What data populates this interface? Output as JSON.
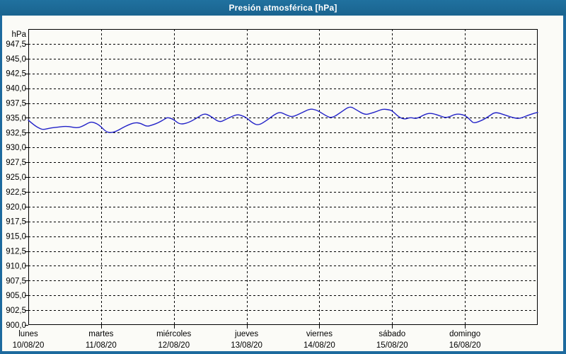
{
  "window": {
    "title": "Presión atmosférica [hPa]"
  },
  "colors": {
    "frame_blue": "#1d6a9e",
    "plot_background": "#fbfbf7",
    "grid": "#000000",
    "line": "#2222c8",
    "text": "#000000",
    "title_text": "#ffffff"
  },
  "chart_data": {
    "type": "line",
    "title": "Presión atmosférica [hPa]",
    "ylabel": "hPa",
    "unit_label": "hPa",
    "ylim": [
      900,
      950
    ],
    "y_tick_step": 2.5,
    "y_tick_labels": [
      "947,5",
      "945,0",
      "942,5",
      "940,0",
      "937,5",
      "935,0",
      "932,5",
      "930,0",
      "927,5",
      "925,0",
      "922,5",
      "920,0",
      "917,5",
      "915,0",
      "912,5",
      "910,0",
      "907,5",
      "905,0",
      "902,5",
      "900,0"
    ],
    "x_days": [
      {
        "name": "lunes",
        "date": "10/08/20"
      },
      {
        "name": "martes",
        "date": "11/08/20"
      },
      {
        "name": "miércoles",
        "date": "12/08/20"
      },
      {
        "name": "jueves",
        "date": "13/08/20"
      },
      {
        "name": "viernes",
        "date": "14/08/20"
      },
      {
        "name": "sábado",
        "date": "15/08/20"
      },
      {
        "name": "domingo",
        "date": "16/08/20"
      }
    ],
    "x_range_hours": [
      0,
      168
    ],
    "grid": "dashed",
    "legend": "none",
    "series": [
      {
        "name": "Presión atmosférica",
        "color": "#2222c8",
        "points_hour_hpa": [
          [
            0,
            934.6
          ],
          [
            2,
            933.7
          ],
          [
            4,
            933.15
          ],
          [
            5,
            933.0
          ],
          [
            7,
            933.25
          ],
          [
            10,
            933.45
          ],
          [
            13,
            933.6
          ],
          [
            16,
            933.25
          ],
          [
            18,
            933.6
          ],
          [
            20,
            934.2
          ],
          [
            21,
            934.3
          ],
          [
            22.5,
            934.05
          ],
          [
            24,
            933.5
          ],
          [
            25.5,
            932.7
          ],
          [
            27,
            932.45
          ],
          [
            29,
            932.7
          ],
          [
            31,
            933.3
          ],
          [
            33,
            933.8
          ],
          [
            35,
            934.2
          ],
          [
            37,
            934.1
          ],
          [
            39,
            933.5
          ],
          [
            41,
            933.8
          ],
          [
            43,
            934.2
          ],
          [
            45,
            934.8
          ],
          [
            46,
            935.1
          ],
          [
            48,
            934.7
          ],
          [
            50,
            933.85
          ],
          [
            53,
            934.2
          ],
          [
            56,
            935.1
          ],
          [
            58,
            935.75
          ],
          [
            60,
            935.35
          ],
          [
            63,
            934.2
          ],
          [
            65,
            934.7
          ],
          [
            67,
            935.2
          ],
          [
            69,
            935.6
          ],
          [
            71,
            935.25
          ],
          [
            72,
            935.0
          ],
          [
            74,
            934.1
          ],
          [
            76,
            933.7
          ],
          [
            79,
            934.7
          ],
          [
            81,
            935.5
          ],
          [
            83,
            936.0
          ],
          [
            85,
            935.5
          ],
          [
            87,
            935.1
          ],
          [
            90,
            935.8
          ],
          [
            93,
            936.55
          ],
          [
            95,
            936.3
          ],
          [
            96,
            936.05
          ],
          [
            98,
            935.4
          ],
          [
            100,
            934.9
          ],
          [
            103,
            935.9
          ],
          [
            106,
            937.0
          ],
          [
            108,
            936.4
          ],
          [
            111,
            935.5
          ],
          [
            113,
            935.75
          ],
          [
            115,
            936.1
          ],
          [
            117,
            936.5
          ],
          [
            119,
            936.35
          ],
          [
            120,
            936.2
          ],
          [
            122,
            935.2
          ],
          [
            124,
            934.7
          ],
          [
            126,
            935.1
          ],
          [
            128,
            934.8
          ],
          [
            131,
            935.65
          ],
          [
            133,
            935.8
          ],
          [
            136,
            935.3
          ],
          [
            138,
            934.95
          ],
          [
            141,
            935.7
          ],
          [
            144,
            935.5
          ],
          [
            146,
            934.5
          ],
          [
            147,
            934.05
          ],
          [
            150,
            934.65
          ],
          [
            152,
            935.3
          ],
          [
            154,
            936.0
          ],
          [
            157,
            935.5
          ],
          [
            160,
            935.0
          ],
          [
            162,
            934.85
          ],
          [
            165,
            935.45
          ],
          [
            167,
            935.8
          ],
          [
            168,
            935.9
          ]
        ]
      }
    ]
  }
}
